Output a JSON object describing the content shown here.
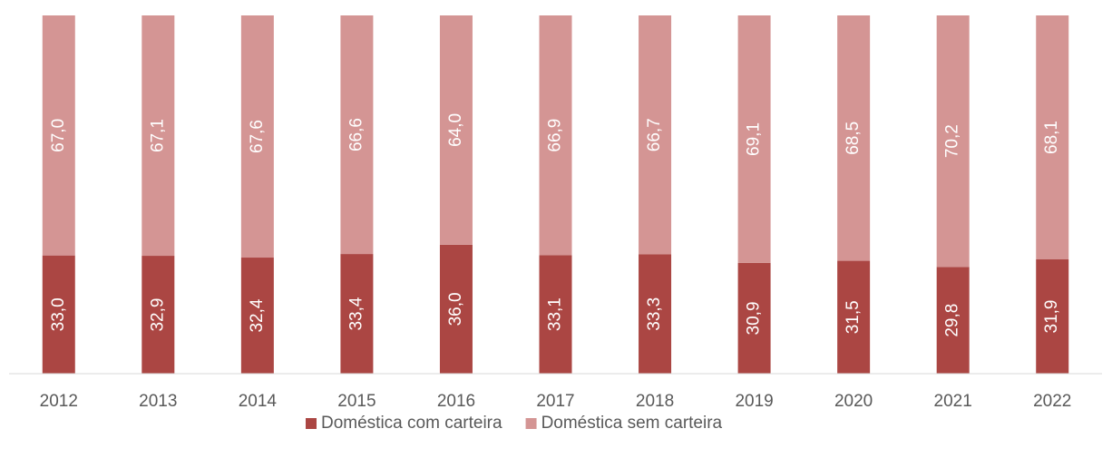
{
  "chart_data": {
    "type": "stacked_bar",
    "categories": [
      "2012",
      "2013",
      "2014",
      "2015",
      "2016",
      "2017",
      "2018",
      "2019",
      "2020",
      "2021",
      "2022"
    ],
    "series": [
      {
        "name": "Doméstica com carteira",
        "color": "#ab4643",
        "values": [
          33.0,
          32.9,
          32.4,
          33.4,
          36.0,
          33.1,
          33.3,
          30.9,
          31.5,
          29.8,
          31.9
        ],
        "value_labels": [
          "33,0",
          "32,9",
          "32,4",
          "33,4",
          "36,0",
          "33,1",
          "33,3",
          "30,9",
          "31,5",
          "29,8",
          "31,9"
        ]
      },
      {
        "name": "Doméstica sem carteira",
        "color": "#d49594",
        "values": [
          67.0,
          67.1,
          67.6,
          66.6,
          64.0,
          66.9,
          66.7,
          69.1,
          68.5,
          70.2,
          68.1
        ],
        "value_labels": [
          "67,0",
          "67,1",
          "67,6",
          "66,6",
          "64,0",
          "66,9",
          "66,7",
          "69,1",
          "68,5",
          "70,2",
          "68,1"
        ]
      }
    ],
    "ylim": [
      0,
      100
    ],
    "legend": "bottom"
  }
}
